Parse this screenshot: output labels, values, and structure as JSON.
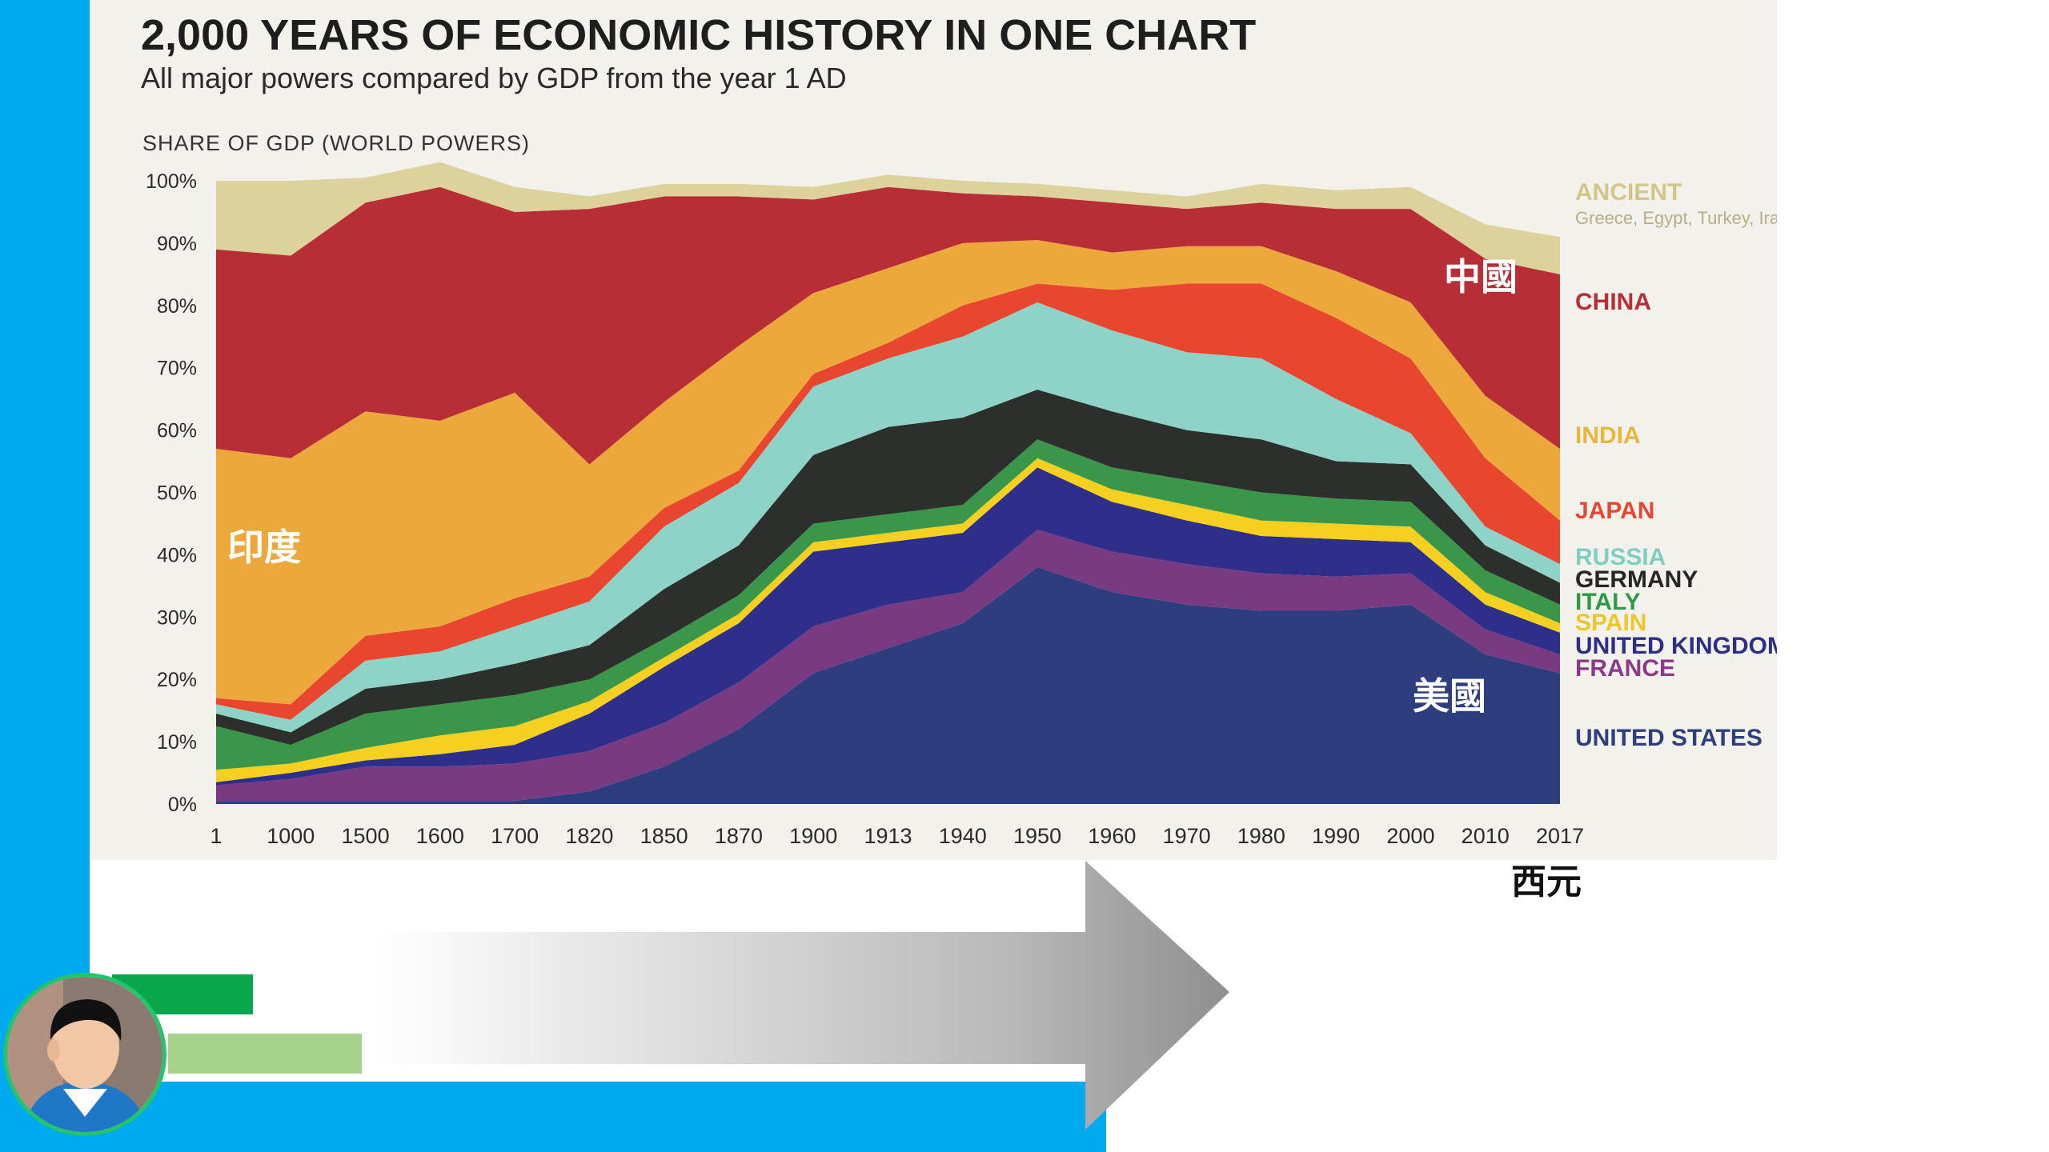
{
  "chart_data": {
    "type": "area",
    "stacked": true,
    "normalized": true,
    "title": "2,000 YEARS OF ECONOMIC HISTORY IN ONE CHART",
    "subtitle": "All major powers compared by GDP from the year 1 AD",
    "ylabel": "SHARE OF GDP (WORLD POWERS)",
    "ylim": [
      0,
      100
    ],
    "yticks": [
      "0%",
      "10%",
      "20%",
      "30%",
      "40%",
      "50%",
      "60%",
      "70%",
      "80%",
      "90%",
      "100%"
    ],
    "x": [
      "1",
      "1000",
      "1500",
      "1600",
      "1700",
      "1820",
      "1850",
      "1870",
      "1900",
      "1913",
      "1940",
      "1950",
      "1960",
      "1970",
      "1980",
      "1990",
      "2000",
      "2010",
      "2017"
    ],
    "legend_position": "right",
    "series": [
      {
        "name": "UNITED STATES",
        "color": "#2d3e7f",
        "values": [
          0.5,
          0.5,
          0.5,
          0.5,
          0.5,
          2,
          6,
          12,
          21,
          25,
          29,
          38,
          34,
          32,
          31,
          31,
          32,
          24,
          21
        ]
      },
      {
        "name": "FRANCE",
        "color": "#7a3a82",
        "values": [
          2.5,
          3.5,
          5.5,
          5.5,
          6,
          6.5,
          7,
          7.5,
          7.5,
          7,
          5,
          6,
          6.5,
          6.5,
          6,
          5.5,
          5,
          4,
          3
        ]
      },
      {
        "name": "UNITED KINGDOM",
        "color": "#2e2f8a",
        "values": [
          0.5,
          1,
          1,
          2,
          3,
          6,
          9,
          9.5,
          12,
          10,
          9.5,
          10,
          8,
          7,
          6,
          6,
          5,
          4,
          3.5
        ]
      },
      {
        "name": "SPAIN",
        "color": "#f5d020",
        "values": [
          2,
          1.5,
          2,
          3,
          3,
          2,
          1.5,
          1.5,
          1.5,
          1.5,
          1.5,
          1.5,
          2,
          2.5,
          2.5,
          2.5,
          2.5,
          2,
          1.5
        ]
      },
      {
        "name": "ITALY",
        "color": "#3a9648",
        "values": [
          7,
          3,
          5.5,
          5,
          5,
          3.5,
          3,
          3,
          3,
          3,
          3,
          3,
          3.5,
          4,
          4.5,
          4,
          4,
          3.5,
          3
        ]
      },
      {
        "name": "GERMANY",
        "color": "#2d2f2d",
        "values": [
          2,
          2,
          4,
          4,
          5,
          5.5,
          8,
          8,
          11,
          14,
          14,
          8,
          9,
          8,
          8.5,
          6,
          6,
          4,
          3.5
        ]
      },
      {
        "name": "RUSSIA",
        "color": "#8ed3c7",
        "values": [
          1.5,
          2,
          4.5,
          4.5,
          6,
          7,
          10,
          10,
          11,
          11,
          13,
          14,
          13,
          12.5,
          13,
          10,
          5,
          3,
          3
        ]
      },
      {
        "name": "JAPAN",
        "color": "#e8462e",
        "values": [
          1,
          2.5,
          4,
          4,
          4.5,
          4,
          3,
          2,
          2,
          2.5,
          5,
          3,
          6.5,
          11,
          12,
          13,
          12,
          11,
          7
        ]
      },
      {
        "name": "INDIA",
        "color": "#eda83c",
        "values": [
          40,
          39.5,
          36,
          33,
          33,
          18,
          17,
          20,
          13,
          12,
          10,
          7,
          6,
          6,
          6,
          7.5,
          9,
          10,
          11.5
        ]
      },
      {
        "name": "CHINA",
        "color": "#b72e36",
        "values": [
          32,
          32.5,
          33.5,
          37.5,
          29,
          41,
          33,
          24,
          15,
          13,
          8,
          7,
          8,
          6,
          7,
          10,
          15,
          22,
          28
        ]
      },
      {
        "name": "ANCIENT",
        "color": "#ddd29c",
        "values": [
          11,
          12,
          4,
          4,
          4,
          2,
          2,
          2,
          2,
          2,
          2,
          2,
          2,
          2,
          3,
          3,
          3.5,
          5.5,
          6
        ]
      }
    ],
    "legend": [
      {
        "label": "ANCIENT",
        "sub": "Greece, Egypt, Turkey, Iran",
        "color": "#d2c789"
      },
      {
        "label": "CHINA",
        "color": "#b72e36"
      },
      {
        "label": "INDIA",
        "color": "#e8b53e"
      },
      {
        "label": "JAPAN",
        "color": "#e04a33"
      },
      {
        "label": "RUSSIA",
        "color": "#7fcfc0"
      },
      {
        "label": "GERMANY",
        "color": "#262626"
      },
      {
        "label": "ITALY",
        "color": "#2f9a45"
      },
      {
        "label": "SPAIN",
        "color": "#ecc62a"
      },
      {
        "label": "UNITED KINGDOM",
        "color": "#2f2e86"
      },
      {
        "label": "FRANCE",
        "color": "#8a3a86"
      },
      {
        "label": "UNITED STATES",
        "color": "#2e3f7c"
      }
    ],
    "annotations": [
      "中國",
      "印度",
      "美國"
    ]
  },
  "caption": {
    "era": "西元"
  },
  "colors": {
    "accent_blue": "#00aaef",
    "green": "#0aa64b",
    "light_green": "#a7d28c"
  }
}
